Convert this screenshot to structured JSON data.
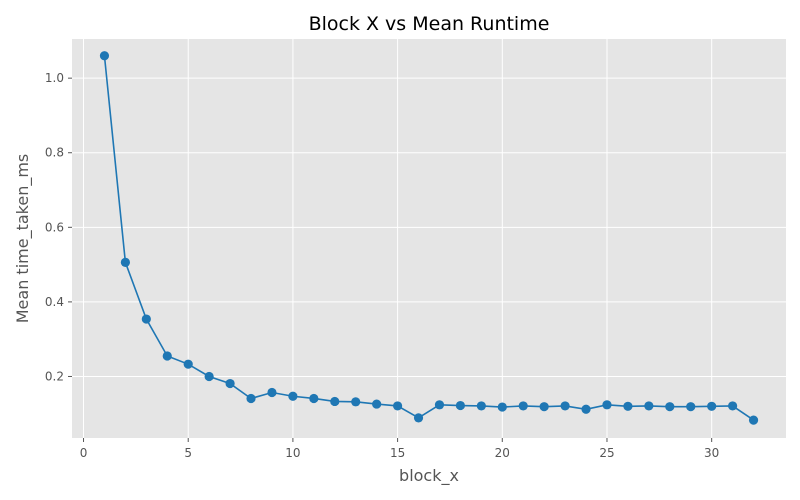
{
  "chart_data": {
    "type": "line",
    "title": "Block X vs Mean Runtime",
    "xlabel": "block_x",
    "ylabel": "Mean time_taken_ms",
    "xlim": [
      -0.55,
      33.55
    ],
    "ylim": [
      0.035,
      1.105
    ],
    "xticks": [
      0,
      5,
      10,
      15,
      20,
      25,
      30
    ],
    "yticks": [
      0.2,
      0.4,
      0.6,
      0.8,
      1.0
    ],
    "ytick_labels": [
      "0.2",
      "0.4",
      "0.6",
      "0.8",
      "1.0"
    ],
    "grid": true,
    "legend": "none",
    "marker": "circle",
    "series": [
      {
        "color": "#1f77b4",
        "x": [
          1,
          2,
          3,
          4,
          5,
          6,
          7,
          8,
          9,
          10,
          11,
          12,
          13,
          14,
          15,
          16,
          17,
          18,
          19,
          20,
          21,
          22,
          23,
          24,
          25,
          26,
          27,
          28,
          29,
          30,
          31,
          32
        ],
        "y": [
          1.06,
          0.506,
          0.354,
          0.255,
          0.233,
          0.2,
          0.181,
          0.141,
          0.157,
          0.147,
          0.141,
          0.133,
          0.132,
          0.126,
          0.121,
          0.089,
          0.124,
          0.122,
          0.121,
          0.118,
          0.121,
          0.119,
          0.121,
          0.112,
          0.124,
          0.12,
          0.121,
          0.119,
          0.119,
          0.12,
          0.121,
          0.083
        ]
      }
    ]
  },
  "colors": {
    "plot_background": "#e5e5e5",
    "grid": "#ffffff",
    "line": "#1f77b4",
    "text": "#555555"
  }
}
